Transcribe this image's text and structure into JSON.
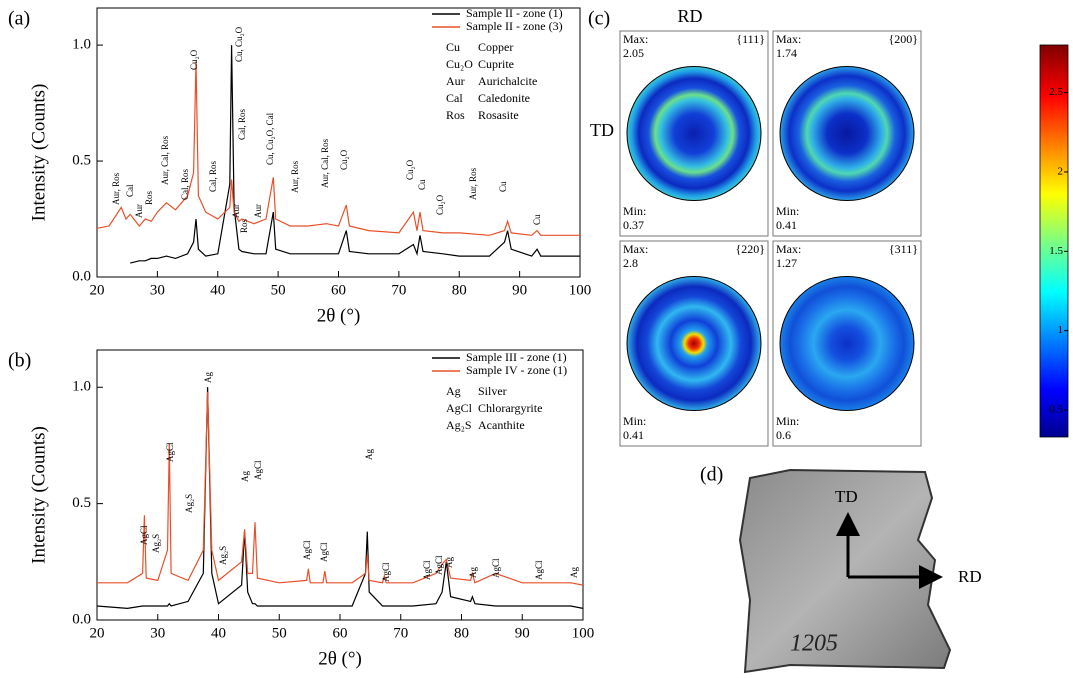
{
  "chart_data": [
    {
      "type": "line",
      "panel_label": "(a)",
      "xlabel": "2θ (°)",
      "ylabel": "Intensity (Counts)",
      "xlim": [
        20,
        100
      ],
      "ylim": [
        0,
        1.16
      ],
      "xticks": [
        20,
        30,
        40,
        50,
        60,
        70,
        80,
        90,
        100
      ],
      "yticks": [
        {
          "value": 0,
          "label": "0.0"
        },
        {
          "value": 0.5,
          "label": "0.5"
        },
        {
          "value": 1,
          "label": "1.0"
        }
      ],
      "x": [
        20,
        22,
        24,
        24.8,
        25.5,
        27,
        28,
        29,
        30,
        31.5,
        33,
        35,
        36,
        36.4,
        36.8,
        38,
        40,
        42,
        42.3,
        42.7,
        43.5,
        44,
        46,
        48,
        49.2,
        49.6,
        52,
        55,
        58,
        60,
        61.3,
        61.8,
        65,
        70,
        72.4,
        73,
        73.5,
        74,
        77.3,
        80,
        85,
        87.5,
        88,
        88.6,
        92,
        92.9,
        93.5,
        100
      ],
      "series": [
        {
          "name": "Sample II - zone (1)",
          "color": "#000000",
          "values": [
            null,
            null,
            null,
            null,
            0.06,
            0.07,
            0.07,
            0.08,
            0.08,
            0.09,
            0.08,
            0.1,
            0.15,
            0.25,
            0.12,
            0.09,
            0.1,
            0.4,
            1.0,
            0.3,
            0.12,
            0.11,
            0.1,
            0.1,
            0.28,
            0.12,
            0.1,
            0.1,
            0.1,
            0.1,
            0.2,
            0.11,
            0.1,
            0.1,
            0.14,
            0.1,
            0.18,
            0.11,
            0.1,
            0.09,
            0.09,
            0.15,
            0.2,
            0.12,
            0.09,
            0.12,
            0.09,
            0.09
          ]
        },
        {
          "name": "Sample II - zone (3)",
          "color": "#e8502a",
          "values": [
            0.21,
            0.22,
            0.3,
            0.25,
            0.27,
            0.22,
            0.25,
            0.24,
            0.28,
            0.32,
            0.29,
            0.35,
            0.45,
            0.93,
            0.35,
            0.28,
            0.25,
            0.3,
            0.42,
            0.28,
            0.24,
            0.25,
            0.23,
            0.25,
            0.43,
            0.25,
            0.22,
            0.22,
            0.23,
            0.22,
            0.31,
            0.22,
            0.2,
            0.19,
            0.28,
            0.2,
            0.28,
            0.2,
            0.19,
            0.19,
            0.18,
            0.2,
            0.24,
            0.19,
            0.18,
            0.2,
            0.18,
            0.18
          ]
        }
      ],
      "key": [
        {
          "symbol": "Cu",
          "name": "Copper"
        },
        {
          "symbol": "Cu₂O",
          "name": "Cuprite"
        },
        {
          "symbol": "Aur",
          "name": "Aurichalcite"
        },
        {
          "symbol": "Cal",
          "name": "Caledonite"
        },
        {
          "symbol": "Ros",
          "name": "Rosasite"
        }
      ],
      "annotations": [
        "Aur, Ros",
        "Cal",
        "Aur",
        "Ros",
        "Aur, Cal, Ros",
        "Cal, Ros",
        "Cu₂O",
        "Cal, Ros",
        "Cu, Cu₂O",
        "Cal, Ros",
        "Aur",
        "Ros",
        "Aur",
        "Cu, Cu₂O, Cal",
        "Aur, Ros",
        "Aur, Cal, Ros",
        "Cu₂O",
        "Cu₂O",
        "Cu",
        "Cu₂O",
        "Aur, Ros",
        "Cu",
        "Cu"
      ]
    },
    {
      "type": "line",
      "panel_label": "(b)",
      "xlabel": "2θ (°)",
      "ylabel": "Intensity (Counts)",
      "xlim": [
        20,
        100
      ],
      "ylim": [
        0,
        1.16
      ],
      "xticks": [
        20,
        30,
        40,
        50,
        60,
        70,
        80,
        90,
        100
      ],
      "yticks": [
        {
          "value": 0,
          "label": "0.0"
        },
        {
          "value": 0.5,
          "label": "0.5"
        },
        {
          "value": 1,
          "label": "1.0"
        }
      ],
      "x": [
        20,
        25,
        27.5,
        27.8,
        28.1,
        30,
        31.6,
        31.9,
        32.2,
        35,
        37.5,
        38.2,
        38.9,
        40,
        43.8,
        44.3,
        44.8,
        45.6,
        46,
        46.4,
        50,
        54.5,
        54.8,
        55.1,
        57.2,
        57.5,
        57.8,
        62,
        64.2,
        64.5,
        64.8,
        67,
        67.3,
        67.6,
        72,
        75.8,
        76.8,
        77.5,
        78.2,
        81.5,
        81.8,
        82.2,
        85.6,
        90,
        98,
        100
      ],
      "series": [
        {
          "name": "Sample III - zone (1)",
          "color": "#000000",
          "values": [
            0.06,
            0.05,
            0.06,
            0.06,
            0.06,
            0.06,
            0.06,
            0.07,
            0.06,
            0.08,
            0.2,
            1.0,
            0.2,
            0.07,
            0.15,
            0.38,
            0.12,
            0.07,
            0.07,
            0.06,
            0.06,
            0.06,
            0.06,
            0.06,
            0.06,
            0.06,
            0.06,
            0.06,
            0.2,
            0.38,
            0.12,
            0.06,
            0.06,
            0.06,
            0.06,
            0.07,
            0.12,
            0.25,
            0.1,
            0.08,
            0.1,
            0.07,
            0.06,
            0.06,
            0.06,
            0.05
          ]
        },
        {
          "name": "Sample IV - zone (1)",
          "color": "#e8502a",
          "values": [
            0.16,
            0.16,
            0.2,
            0.45,
            0.18,
            0.17,
            0.3,
            0.76,
            0.2,
            0.17,
            0.3,
            0.98,
            0.3,
            0.17,
            0.25,
            0.39,
            0.2,
            0.2,
            0.42,
            0.18,
            0.16,
            0.17,
            0.22,
            0.16,
            0.16,
            0.21,
            0.16,
            0.16,
            0.2,
            0.28,
            0.17,
            0.16,
            0.19,
            0.16,
            0.16,
            0.2,
            0.24,
            0.26,
            0.18,
            0.17,
            0.2,
            0.16,
            0.2,
            0.16,
            0.16,
            0.15
          ]
        }
      ],
      "key": [
        {
          "symbol": "Ag",
          "name": "Silver"
        },
        {
          "symbol": "AgCl",
          "name": "Chlorargyrite"
        },
        {
          "symbol": "Ag₂S",
          "name": "Acanthite"
        }
      ],
      "annotations": [
        "AgCl",
        "Ag₂S",
        "AgCl",
        "Ag₂S",
        "Ag",
        "Ag₂S",
        "Ag",
        "AgCl",
        "AgCl",
        "AgCl",
        "Ag",
        "AgCl",
        "AgCl",
        "AgCl",
        "Ag",
        "Ag",
        "AgCl",
        "AgCl",
        "Ag"
      ]
    }
  ],
  "pole_figures": {
    "panel_label": "(c)",
    "rd": "RD",
    "td": "TD",
    "max_label": "Max:",
    "min_label": "Min:",
    "panels": [
      {
        "plane": "{111}",
        "max": "2.05",
        "min": "0.37"
      },
      {
        "plane": "{200}",
        "max": "1.74",
        "min": "0.41"
      },
      {
        "plane": "{220}",
        "max": "2.8",
        "min": "0.41"
      },
      {
        "plane": "{311}",
        "max": "1.27",
        "min": "0.6"
      }
    ],
    "colorbar": {
      "lim": [
        0.33,
        2.8
      ],
      "ticks": [
        0.5,
        1,
        1.5,
        2,
        2.5
      ]
    }
  },
  "photo": {
    "panel_label": "(d)",
    "td": "TD",
    "rd": "RD",
    "marking": "1205"
  }
}
